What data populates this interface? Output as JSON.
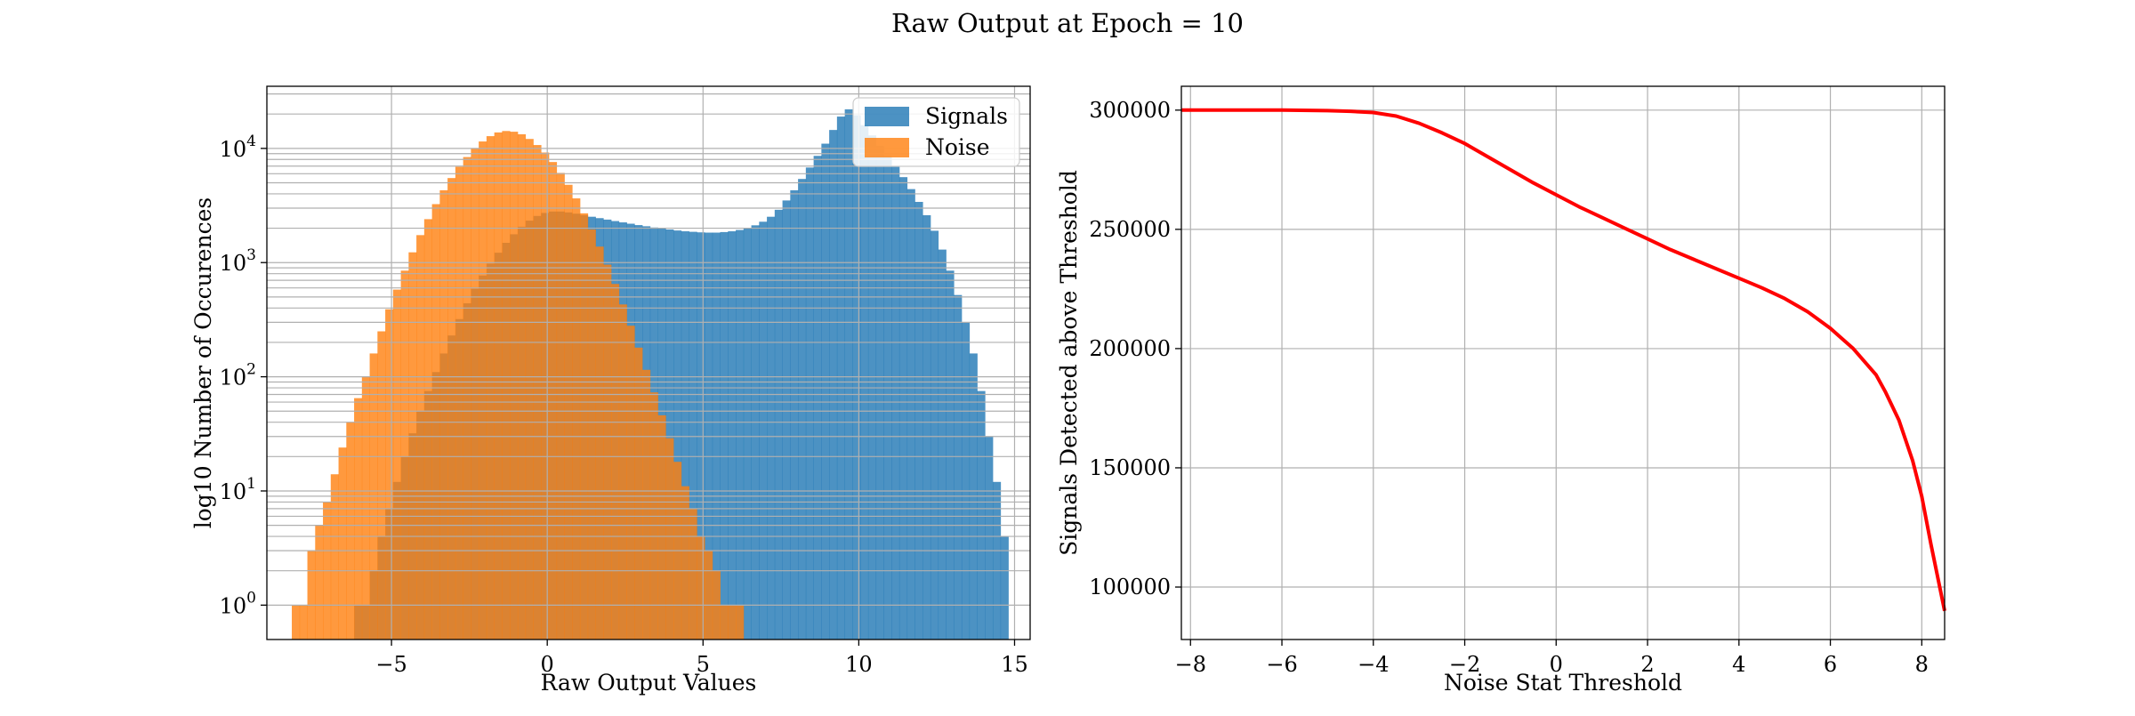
{
  "figure": {
    "title": "Raw Output at Epoch = 10"
  },
  "chart_data": [
    {
      "type": "bar",
      "subtype": "histogram",
      "xlabel": "Raw Output Values",
      "ylabel": "log10 Number of Occurences",
      "xlim": [
        -9,
        15.5
      ],
      "ylim": [
        0.5,
        35000
      ],
      "yscale": "log",
      "xticks": [
        -5,
        0,
        5,
        10,
        15
      ],
      "xtick_labels": [
        "−5",
        "0",
        "5",
        "10",
        "15"
      ],
      "yticks": [
        1,
        10,
        100,
        1000,
        10000
      ],
      "ytick_labels": [
        {
          "base": "10",
          "exp": "0"
        },
        {
          "base": "10",
          "exp": "1"
        },
        {
          "base": "10",
          "exp": "2"
        },
        {
          "base": "10",
          "exp": "3"
        },
        {
          "base": "10",
          "exp": "4"
        }
      ],
      "grid": true,
      "legend_position": "upper-right",
      "bin_start": -8.2,
      "bin_width": 0.25,
      "series": [
        {
          "name": "Signals",
          "color": "#1f77b4",
          "opacity": 0.8,
          "counts": [
            0,
            0,
            0,
            0,
            0,
            0,
            0,
            0,
            1,
            1,
            2,
            4,
            7,
            12,
            20,
            32,
            50,
            75,
            110,
            160,
            230,
            320,
            440,
            590,
            770,
            980,
            1220,
            1490,
            1770,
            2060,
            2330,
            2560,
            2720,
            2800,
            2800,
            2750,
            2680,
            2600,
            2520,
            2450,
            2380,
            2310,
            2250,
            2190,
            2130,
            2080,
            2030,
            1990,
            1950,
            1910,
            1880,
            1860,
            1840,
            1830,
            1830,
            1850,
            1880,
            1930,
            2010,
            2120,
            2280,
            2520,
            2900,
            3500,
            4300,
            5400,
            6800,
            8600,
            11000,
            14500,
            19000,
            22000,
            19500,
            16000,
            13000,
            10500,
            8600,
            7000,
            5600,
            4400,
            3400,
            2600,
            1900,
            1300,
            850,
            520,
            300,
            160,
            75,
            30,
            12,
            4
          ]
        },
        {
          "name": "Noise",
          "color": "#ff7f0e",
          "opacity": 0.8,
          "counts": [
            1,
            1,
            3,
            5,
            8,
            14,
            24,
            40,
            65,
            100,
            160,
            250,
            390,
            580,
            850,
            1230,
            1740,
            2400,
            3250,
            4300,
            5500,
            6900,
            8400,
            10000,
            11500,
            12800,
            13800,
            14200,
            14000,
            13300,
            12100,
            10700,
            9200,
            7600,
            6100,
            4800,
            3650,
            2700,
            1950,
            1380,
            960,
            650,
            430,
            280,
            180,
            115,
            73,
            46,
            29,
            18,
            11,
            7,
            4,
            3,
            2,
            1,
            1,
            1
          ]
        }
      ]
    },
    {
      "type": "line",
      "xlabel": "Noise Stat Threshold",
      "ylabel": "Signals Detected above Threshold",
      "xlim": [
        -8.2,
        8.5
      ],
      "ylim": [
        78000,
        310000
      ],
      "xticks": [
        -8,
        -6,
        -4,
        -2,
        0,
        2,
        4,
        6,
        8
      ],
      "xtick_labels": [
        "−8",
        "−6",
        "−4",
        "−2",
        "0",
        "2",
        "4",
        "6",
        "8"
      ],
      "yticks": [
        100000,
        150000,
        200000,
        250000,
        300000
      ],
      "ytick_labels": [
        "100000",
        "150000",
        "200000",
        "250000",
        "300000"
      ],
      "grid": true,
      "series": [
        {
          "color": "#ff0000",
          "x": [
            -8.2,
            -7,
            -6,
            -5,
            -4.5,
            -4,
            -3.5,
            -3,
            -2.5,
            -2,
            -1.5,
            -1,
            -0.5,
            0,
            0.5,
            1,
            1.5,
            2,
            2.5,
            3,
            3.5,
            4,
            4.5,
            5,
            5.5,
            6,
            6.5,
            7,
            7.2,
            7.5,
            7.8,
            8.0,
            8.2,
            8.5
          ],
          "y": [
            300000,
            300000,
            300000,
            299800,
            299500,
            299000,
            297500,
            294500,
            290500,
            286000,
            280500,
            275000,
            269500,
            264500,
            259500,
            255000,
            250500,
            246000,
            241500,
            237500,
            233500,
            229500,
            225500,
            221000,
            215500,
            208500,
            200000,
            189000,
            182000,
            170000,
            153000,
            138000,
            118000,
            90000
          ]
        }
      ]
    }
  ]
}
